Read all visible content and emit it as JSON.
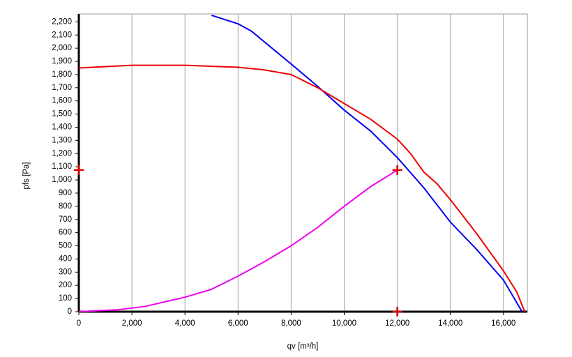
{
  "chart_data": {
    "type": "line",
    "x_label": "qv [m³/h]",
    "y_label": "pfs [Pa]",
    "xlim": [
      0,
      16900
    ],
    "ylim": [
      0,
      2260
    ],
    "xticks": [
      0,
      {
        "value": 2000,
        "label": "2,000"
      },
      {
        "value": 4000,
        "label": "4,000"
      },
      {
        "value": 6000,
        "label": "6,000"
      },
      {
        "value": 8000,
        "label": "8,000"
      },
      {
        "value": 10000,
        "label": "10,000"
      },
      {
        "value": 12000,
        "label": "12,000"
      },
      {
        "value": 14000,
        "label": "14,000"
      },
      {
        "value": 16000,
        "label": "16,000"
      }
    ],
    "yticks": [
      0,
      100,
      200,
      300,
      400,
      500,
      600,
      700,
      800,
      900,
      {
        "value": 1000,
        "label": "1,000"
      },
      {
        "value": 1100,
        "label": "1,100"
      },
      {
        "value": 1200,
        "label": "1,200"
      },
      {
        "value": 1300,
        "label": "1,300"
      },
      {
        "value": 1400,
        "label": "1,400"
      },
      {
        "value": 1500,
        "label": "1,500"
      },
      {
        "value": 1600,
        "label": "1,600"
      },
      {
        "value": 1700,
        "label": "1,700"
      },
      {
        "value": 1800,
        "label": "1,800"
      },
      {
        "value": 1900,
        "label": "1,900"
      },
      {
        "value": 2000,
        "label": "2,000"
      },
      {
        "value": 2100,
        "label": "2,100"
      },
      {
        "value": 2200,
        "label": "2,200"
      }
    ],
    "grid": "x",
    "series": [
      {
        "color": "#0000ee",
        "x": [
          5000,
          6000,
          6500,
          8000,
          9000,
          10000,
          11000,
          12000,
          13000,
          14000,
          15000,
          16000,
          16700
        ],
        "values": [
          2250,
          2185,
          2130,
          1880,
          1710,
          1530,
          1370,
          1170,
          940,
          680,
          470,
          240,
          0
        ]
      },
      {
        "color": "#ee0000",
        "x": [
          0,
          2000,
          4000,
          6000,
          7000,
          8000,
          9000,
          10000,
          11000,
          12000,
          12500,
          13000,
          13500,
          14000,
          15000,
          16000,
          16500,
          16800
        ],
        "values": [
          1850,
          1870,
          1870,
          1855,
          1835,
          1800,
          1700,
          1580,
          1460,
          1310,
          1200,
          1060,
          970,
          850,
          590,
          310,
          150,
          0
        ]
      },
      {
        "color": "#ee00ee",
        "x": [
          0,
          1500,
          2500,
          4000,
          5000,
          6000,
          7000,
          8000,
          9000,
          10000,
          11000,
          12000
        ],
        "values": [
          0,
          15,
          40,
          110,
          170,
          270,
          380,
          500,
          640,
          800,
          950,
          1075
        ]
      }
    ],
    "operating_point": {
      "x": 12000,
      "y": 1075,
      "color": "#dd0000"
    }
  }
}
